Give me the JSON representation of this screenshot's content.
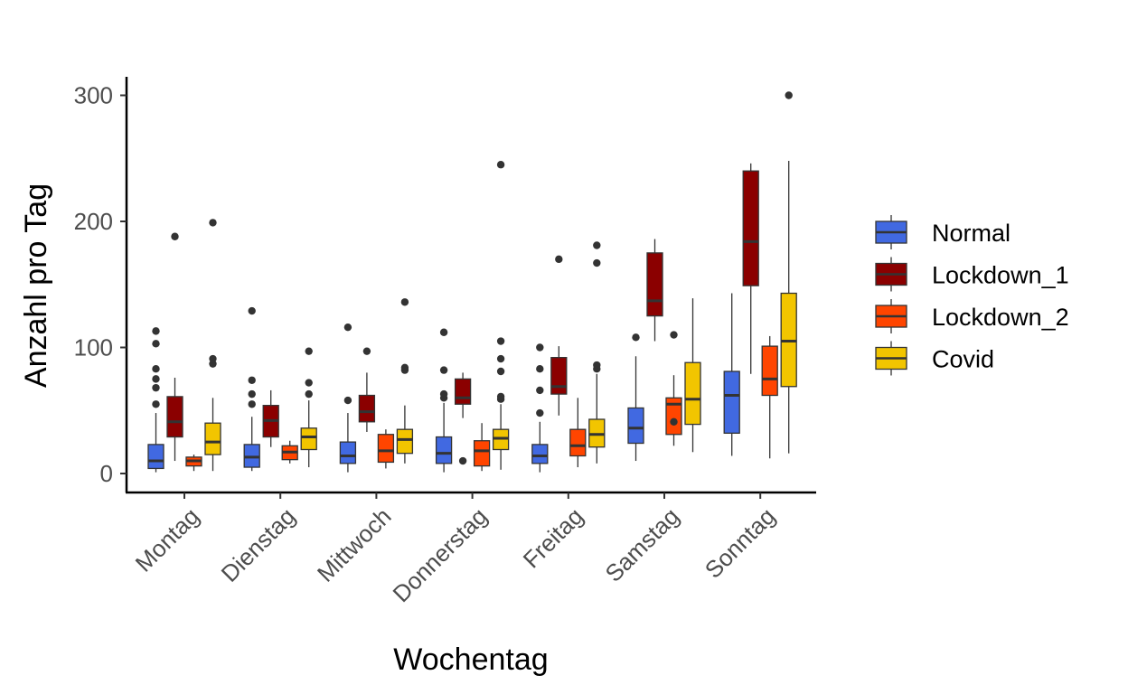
{
  "chart_data": {
    "type": "boxplot",
    "xlabel": "Wochentag",
    "ylabel": "Anzahl pro Tag",
    "ylim": [
      -15,
      315
    ],
    "yticks": [
      0,
      100,
      200,
      300
    ],
    "grid": false,
    "legend_position": "right",
    "categories": [
      "Montag",
      "Dienstag",
      "Mittwoch",
      "Donnerstag",
      "Freitag",
      "Samstag",
      "Sonntag"
    ],
    "series": [
      {
        "name": "Normal",
        "color": "#4169E1",
        "boxes": [
          {
            "whisker_low": 1,
            "q1": 4,
            "median": 10,
            "q3": 23,
            "whisker_high": 48,
            "outliers": [
              55,
              68,
              75,
              83,
              103,
              113
            ]
          },
          {
            "whisker_low": 2,
            "q1": 5,
            "median": 13,
            "q3": 23,
            "whisker_high": 45,
            "outliers": [
              55,
              63,
              74,
              129
            ]
          },
          {
            "whisker_low": 1,
            "q1": 8,
            "median": 14,
            "q3": 25,
            "whisker_high": 48,
            "outliers": [
              58,
              116
            ]
          },
          {
            "whisker_low": 1,
            "q1": 8,
            "median": 16,
            "q3": 29,
            "whisker_high": 56,
            "outliers": [
              60,
              63,
              82,
              112
            ]
          },
          {
            "whisker_low": 1,
            "q1": 8,
            "median": 14,
            "q3": 23,
            "whisker_high": 41,
            "outliers": [
              48,
              66,
              83,
              100
            ]
          },
          {
            "whisker_low": 10,
            "q1": 24,
            "median": 36,
            "q3": 52,
            "whisker_high": 93,
            "outliers": [
              108
            ]
          },
          {
            "whisker_low": 14,
            "q1": 32,
            "median": 62,
            "q3": 81,
            "whisker_high": 143,
            "outliers": []
          }
        ]
      },
      {
        "name": "Lockdown_1",
        "color": "#8B0000",
        "boxes": [
          {
            "whisker_low": 10,
            "q1": 29,
            "median": 41,
            "q3": 61,
            "whisker_high": 76,
            "outliers": [
              188
            ]
          },
          {
            "whisker_low": 21,
            "q1": 29,
            "median": 42,
            "q3": 54,
            "whisker_high": 66,
            "outliers": []
          },
          {
            "whisker_low": 33,
            "q1": 41,
            "median": 49,
            "q3": 62,
            "whisker_high": 80,
            "outliers": [
              97
            ]
          },
          {
            "whisker_low": 44,
            "q1": 55,
            "median": 60,
            "q3": 75,
            "whisker_high": 80,
            "outliers": [
              10
            ]
          },
          {
            "whisker_low": 46,
            "q1": 63,
            "median": 69,
            "q3": 92,
            "whisker_high": 101,
            "outliers": [
              170
            ]
          },
          {
            "whisker_low": 105,
            "q1": 125,
            "median": 137,
            "q3": 175,
            "whisker_high": 186,
            "outliers": []
          },
          {
            "whisker_low": 79,
            "q1": 149,
            "median": 184,
            "q3": 240,
            "whisker_high": 246,
            "outliers": []
          }
        ]
      },
      {
        "name": "Lockdown_2",
        "color": "#FF4500",
        "boxes": [
          {
            "whisker_low": 2,
            "q1": 6,
            "median": 10,
            "q3": 13,
            "whisker_high": 15,
            "outliers": []
          },
          {
            "whisker_low": 8,
            "q1": 11,
            "median": 17,
            "q3": 22,
            "whisker_high": 26,
            "outliers": []
          },
          {
            "whisker_low": 4,
            "q1": 9,
            "median": 18,
            "q3": 31,
            "whisker_high": 35,
            "outliers": []
          },
          {
            "whisker_low": 2,
            "q1": 6,
            "median": 18,
            "q3": 26,
            "whisker_high": 40,
            "outliers": []
          },
          {
            "whisker_low": 5,
            "q1": 14,
            "median": 22,
            "q3": 35,
            "whisker_high": 60,
            "outliers": []
          },
          {
            "whisker_low": 22,
            "q1": 31,
            "median": 55,
            "q3": 60,
            "whisker_high": 78,
            "outliers": [
              41,
              110
            ]
          },
          {
            "whisker_low": 12,
            "q1": 62,
            "median": 75,
            "q3": 101,
            "whisker_high": 109,
            "outliers": []
          }
        ]
      },
      {
        "name": "Covid",
        "color": "#F2C500",
        "boxes": [
          {
            "whisker_low": 2,
            "q1": 15,
            "median": 25,
            "q3": 40,
            "whisker_high": 60,
            "outliers": [
              87,
              91,
              199
            ]
          },
          {
            "whisker_low": 5,
            "q1": 19,
            "median": 29,
            "q3": 36,
            "whisker_high": 58,
            "outliers": [
              63,
              72,
              97
            ]
          },
          {
            "whisker_low": 8,
            "q1": 16,
            "median": 27,
            "q3": 35,
            "whisker_high": 54,
            "outliers": [
              82,
              84,
              136
            ]
          },
          {
            "whisker_low": 3,
            "q1": 19,
            "median": 28,
            "q3": 35,
            "whisker_high": 55,
            "outliers": [
              59,
              61,
              81,
              91,
              105,
              245
            ]
          },
          {
            "whisker_low": 8,
            "q1": 21,
            "median": 31,
            "q3": 43,
            "whisker_high": 79,
            "outliers": [
              83,
              86,
              167,
              181
            ]
          },
          {
            "whisker_low": 17,
            "q1": 39,
            "median": 59,
            "q3": 88,
            "whisker_high": 139,
            "outliers": []
          },
          {
            "whisker_low": 16,
            "q1": 69,
            "median": 105,
            "q3": 143,
            "whisker_high": 248,
            "outliers": [
              300
            ]
          }
        ]
      }
    ]
  }
}
